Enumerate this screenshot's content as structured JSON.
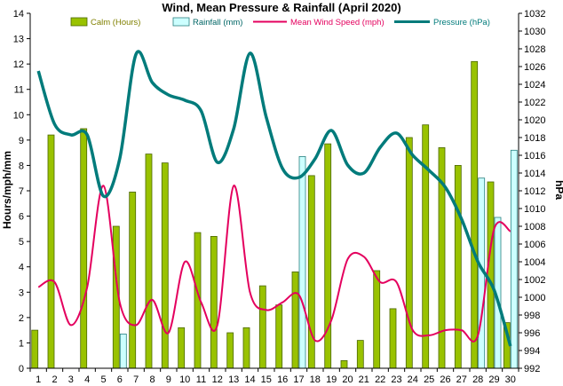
{
  "chart_data": {
    "type": "bar",
    "title": "Wind, Mean Pressure & Rainfall (April 2020)",
    "ylabel": "Hours/mph/mm",
    "ylabel_right": "hPa",
    "ylim": [
      0,
      14
    ],
    "ylim_right": [
      992,
      1032
    ],
    "categories": [
      "1",
      "2",
      "3",
      "4",
      "5",
      "6",
      "7",
      "8",
      "9",
      "10",
      "11",
      "12",
      "13",
      "14",
      "15",
      "16",
      "17",
      "18",
      "19",
      "20",
      "21",
      "22",
      "23",
      "24",
      "25",
      "26",
      "27",
      "28",
      "29",
      "30"
    ],
    "y_ticks": [
      "0",
      "1",
      "2",
      "3",
      "4",
      "5",
      "6",
      "7",
      "8",
      "9",
      "10",
      "11",
      "12",
      "13",
      "14"
    ],
    "y_ticks_right": [
      "992",
      "994",
      "996",
      "998",
      "1000",
      "1002",
      "1004",
      "1006",
      "1008",
      "1010",
      "1012",
      "1014",
      "1016",
      "1018",
      "1020",
      "1022",
      "1024",
      "1026",
      "1028",
      "1030",
      "1032"
    ],
    "grid": false,
    "legend_position": "top",
    "series": [
      {
        "name": "Calm (Hours)",
        "kind": "bar",
        "axis": "left",
        "color": "#99c200",
        "values": [
          1.5,
          9.2,
          0,
          9.45,
          0,
          5.6,
          6.95,
          8.45,
          8.1,
          1.6,
          5.35,
          5.2,
          1.4,
          1.6,
          3.25,
          2.5,
          3.8,
          7.6,
          8.85,
          0.3,
          1.1,
          3.85,
          2.35,
          9.1,
          9.6,
          8.7,
          8.0,
          12.1,
          7.35,
          1.8
        ]
      },
      {
        "name": "Rainfall (mm)",
        "kind": "bar",
        "axis": "left",
        "color": "#ccffff",
        "values": [
          0,
          0,
          0,
          0,
          0,
          1.35,
          0,
          0,
          0,
          0,
          0,
          0,
          0,
          0,
          0,
          0,
          8.35,
          0,
          0,
          0,
          0,
          0,
          0,
          0,
          0,
          0,
          0,
          7.5,
          5.95,
          8.6
        ]
      },
      {
        "name": "Mean Wind Speed (mph)",
        "kind": "line",
        "axis": "left",
        "color": "#e4005e",
        "values": [
          3.2,
          3.4,
          1.7,
          3.2,
          7.2,
          2.6,
          1.7,
          2.7,
          1.4,
          4.2,
          2.6,
          1.7,
          7.2,
          3.0,
          2.3,
          2.6,
          2.9,
          1.1,
          1.9,
          4.3,
          4.4,
          3.4,
          3.4,
          1.5,
          1.3,
          1.5,
          1.5,
          1.3,
          5.5,
          5.4
        ]
      },
      {
        "name": "Pressure (hPa)",
        "kind": "line",
        "axis": "right",
        "color": "#007b7b",
        "values": [
          1025.5,
          1019.5,
          1018.3,
          1018.3,
          1011.4,
          1015.6,
          1027.4,
          1024.2,
          1022.8,
          1022.2,
          1021.0,
          1015.2,
          1019.0,
          1027.5,
          1020.3,
          1014.5,
          1013.5,
          1015.6,
          1018.8,
          1014.9,
          1014.0,
          1016.9,
          1018.5,
          1016.0,
          1014.3,
          1012.4,
          1008.8,
          1004.0,
          1000.8,
          994.5
        ]
      }
    ]
  }
}
